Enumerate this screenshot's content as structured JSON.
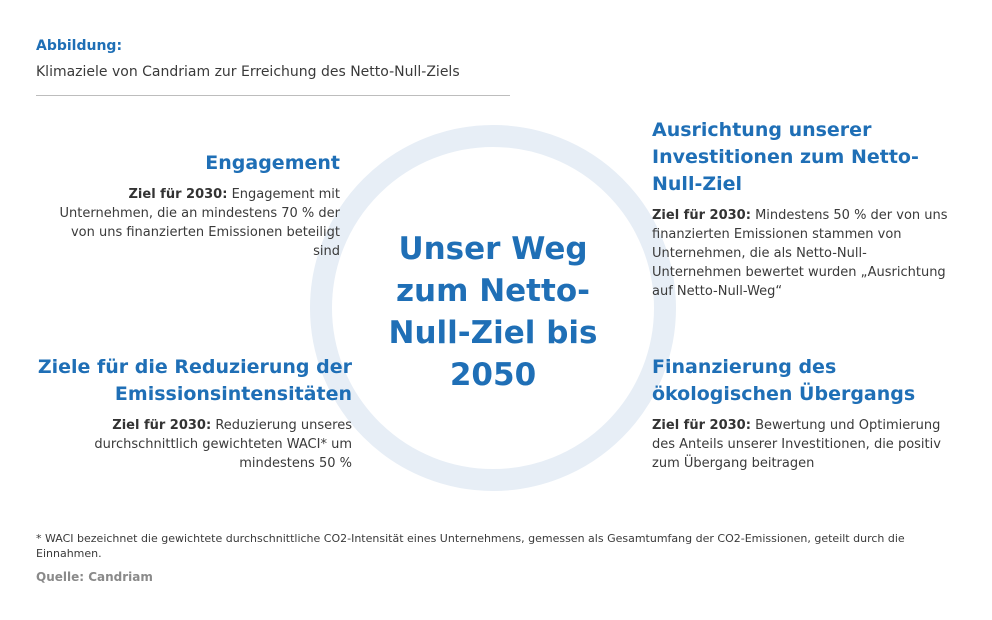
{
  "header": {
    "label": "Abbildung:",
    "title": "Klimaziele von Candriam zur Erreichung des Netto-Null-Ziels"
  },
  "center": {
    "title": "Unser Weg zum Netto-Null-Ziel bis 2050"
  },
  "goal_prefix": "Ziel für 2030:",
  "blocks": {
    "engagement": {
      "heading": "Engagement",
      "text": "Engagement mit Unternehmen, die an mindestens 70 % der von uns finanzierten Emissionen beteiligt sind"
    },
    "reduktion": {
      "heading": "Ziele für die Reduzierung der Emissionsintensitäten",
      "text": "Reduzierung unseres durchschnittlich gewichteten WACI* um mindestens 50 %"
    },
    "ausrichtung": {
      "heading": "Ausrichtung unserer Investitionen zum Netto-Null-Ziel",
      "text": "Mindestens 50 % der von uns finanzierten Emissionen stammen von Unternehmen, die als Netto-Null-Unternehmen bewertet wurden „Ausrichtung auf Netto-Null-Weg“"
    },
    "finanzierung": {
      "heading": "Finanzierung des ökologischen Übergangs",
      "text": "Bewertung und Optimierung des Anteils unserer Investitionen, die positiv zum Übergang beitragen"
    }
  },
  "footnote": "* WACI bezeichnet die gewichtete durchschnittliche CO2-Intensität eines Unternehmens, gemessen als Gesamtumfang der CO2-Emissionen, geteilt durch die Einnahmen.",
  "source": "Quelle: Candriam",
  "colors": {
    "accent": "#1f6fb6",
    "ring": "#e7eef6",
    "text": "#3a3a3a"
  }
}
